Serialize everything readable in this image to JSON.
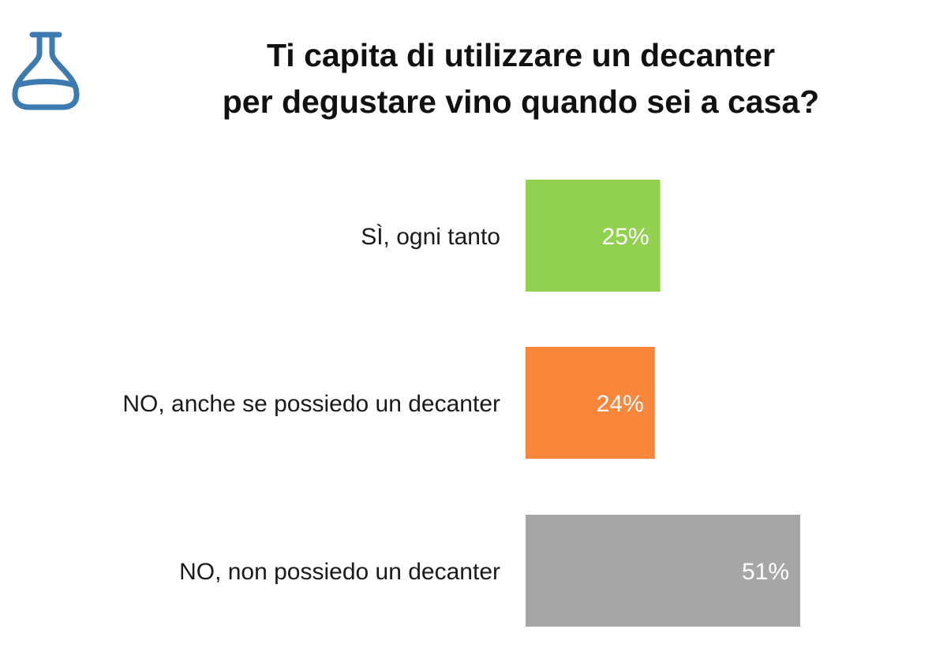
{
  "title_lines": [
    "Ti capita di utilizzare un decanter",
    "per degustare vino quando sei a casa?"
  ],
  "logo": {
    "icon": "decanter-icon",
    "color": "#3d7ab0"
  },
  "chart_data": {
    "type": "bar",
    "orientation": "horizontal",
    "title": "Ti capita di utilizzare un decanter per degustare vino quando sei a casa?",
    "categories": [
      "SÌ, ogni tanto",
      "NO, anche se possiedo un decanter",
      "NO, non possiedo un decanter"
    ],
    "values": [
      25,
      24,
      51
    ],
    "value_labels": [
      "25%",
      "24%",
      "51%"
    ],
    "unit": "%",
    "colors": [
      "#92d050",
      "#f9863a",
      "#a6a6a6"
    ],
    "xlim": [
      0,
      51
    ],
    "grid": false,
    "legend": "none"
  }
}
